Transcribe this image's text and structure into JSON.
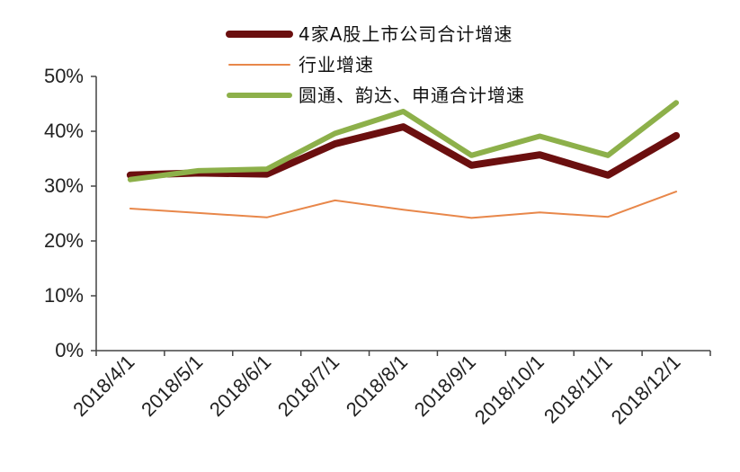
{
  "chart_data": {
    "type": "line",
    "title": "",
    "xlabel": "",
    "ylabel": "",
    "categories": [
      "2018/4/1",
      "2018/5/1",
      "2018/6/1",
      "2018/7/1",
      "2018/8/1",
      "2018/9/1",
      "2018/10/1",
      "2018/11/1",
      "2018/12/1"
    ],
    "ylim": [
      0,
      50
    ],
    "yticks": [
      0,
      10,
      20,
      30,
      40,
      50
    ],
    "ytick_labels": [
      "0%",
      "10%",
      "20%",
      "30%",
      "40%",
      "50%"
    ],
    "grid": false,
    "legend_position": "top-center",
    "series": [
      {
        "name": "4家A股上市公司合计增速",
        "color": "#6b0f0f",
        "values": [
          32.0,
          32.4,
          32.2,
          37.7,
          40.8,
          33.8,
          35.7,
          32.0,
          39.2
        ]
      },
      {
        "name": "行业增速",
        "color": "#e8874a",
        "values": [
          25.9,
          25.1,
          24.3,
          27.4,
          25.7,
          24.2,
          25.2,
          24.4,
          29.0
        ]
      },
      {
        "name": "圆通、韵达、申通合计增速",
        "color": "#8db04a",
        "values": [
          31.2,
          32.8,
          33.1,
          39.6,
          43.6,
          35.6,
          39.1,
          35.6,
          45.2
        ]
      }
    ]
  }
}
